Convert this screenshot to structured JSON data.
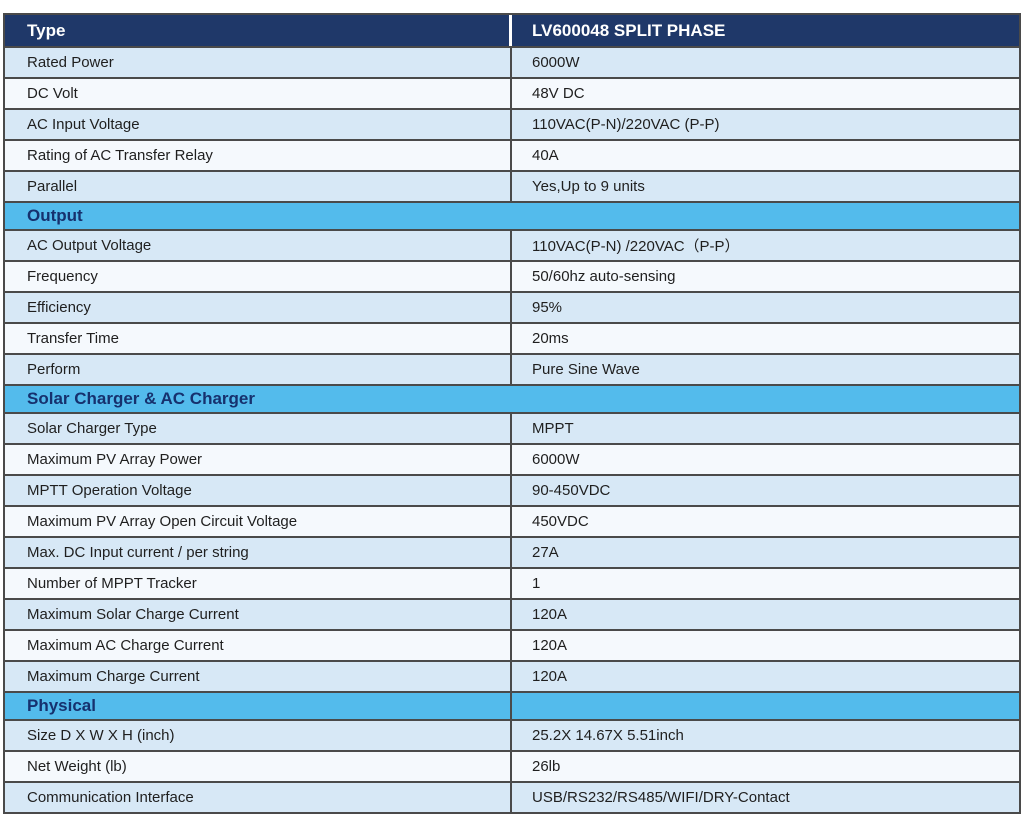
{
  "colors": {
    "header_bg": "#1f3869",
    "header_text": "#ffffff",
    "section_bg": "#53bbec",
    "section_text": "#16316e",
    "row_light_blue": "#d7e8f6",
    "row_white": "#f5f9fd",
    "border": "#4a4a4a"
  },
  "table": {
    "rows": [
      {
        "type": "head",
        "label": "Type",
        "value": "LV600048 SPLIT PHASE"
      },
      {
        "type": "data",
        "shade": "blue",
        "label": "Rated Power",
        "value": "6000W"
      },
      {
        "type": "data",
        "shade": "white",
        "label": "DC Volt",
        "value": "48V DC"
      },
      {
        "type": "data",
        "shade": "blue",
        "label": "AC Input Voltage",
        "value": "110VAC(P-N)/220VAC (P-P)"
      },
      {
        "type": "data",
        "shade": "white",
        "label": "Rating of AC Transfer Relay",
        "value": "40A"
      },
      {
        "type": "data",
        "shade": "blue",
        "label": "Parallel",
        "value": "Yes,Up to 9 units"
      },
      {
        "type": "section",
        "split": false,
        "label": "Output"
      },
      {
        "type": "data",
        "shade": "blue",
        "label": "AC Output Voltage",
        "value": "110VAC(P-N) /220VAC（P-P）"
      },
      {
        "type": "data",
        "shade": "white",
        "label": "Frequency",
        "value": "50/60hz auto-sensing"
      },
      {
        "type": "data",
        "shade": "blue",
        "label": "Efficiency",
        "value": "95%"
      },
      {
        "type": "data",
        "shade": "white",
        "label": "Transfer Time",
        "value": "20ms"
      },
      {
        "type": "data",
        "shade": "blue",
        "label": "Perform",
        "value": "Pure Sine Wave"
      },
      {
        "type": "section",
        "split": false,
        "label": "Solar Charger & AC Charger"
      },
      {
        "type": "data",
        "shade": "blue",
        "label": "Solar Charger Type",
        "value": "MPPT"
      },
      {
        "type": "data",
        "shade": "white",
        "label": "Maximum PV Array Power",
        "value": "6000W"
      },
      {
        "type": "data",
        "shade": "blue",
        "label": "MPTT Operation Voltage",
        "value": "90-450VDC"
      },
      {
        "type": "data",
        "shade": "white",
        "label": "Maximum PV Array Open Circuit Voltage",
        "value": "450VDC"
      },
      {
        "type": "data",
        "shade": "blue",
        "label": "Max. DC Input current / per string",
        "value": "27A"
      },
      {
        "type": "data",
        "shade": "white",
        "label": "Number of MPPT Tracker",
        "value": "1"
      },
      {
        "type": "data",
        "shade": "blue",
        "label": "Maximum Solar Charge Current",
        "value": "120A"
      },
      {
        "type": "data",
        "shade": "white",
        "label": "Maximum AC Charge Current",
        "value": "120A"
      },
      {
        "type": "data",
        "shade": "blue",
        "label": "Maximum Charge Current",
        "value": "120A"
      },
      {
        "type": "section",
        "split": true,
        "label": "Physical",
        "value": ""
      },
      {
        "type": "data",
        "shade": "blue",
        "label": "Size D X W X H (inch)",
        "value": "25.2X 14.67X 5.51inch"
      },
      {
        "type": "data",
        "shade": "white",
        "label": "Net Weight (lb)",
        "value": "26lb"
      },
      {
        "type": "data",
        "shade": "blue",
        "label": "Communication Interface",
        "value": "USB/RS232/RS485/WIFI/DRY-Contact"
      }
    ]
  }
}
